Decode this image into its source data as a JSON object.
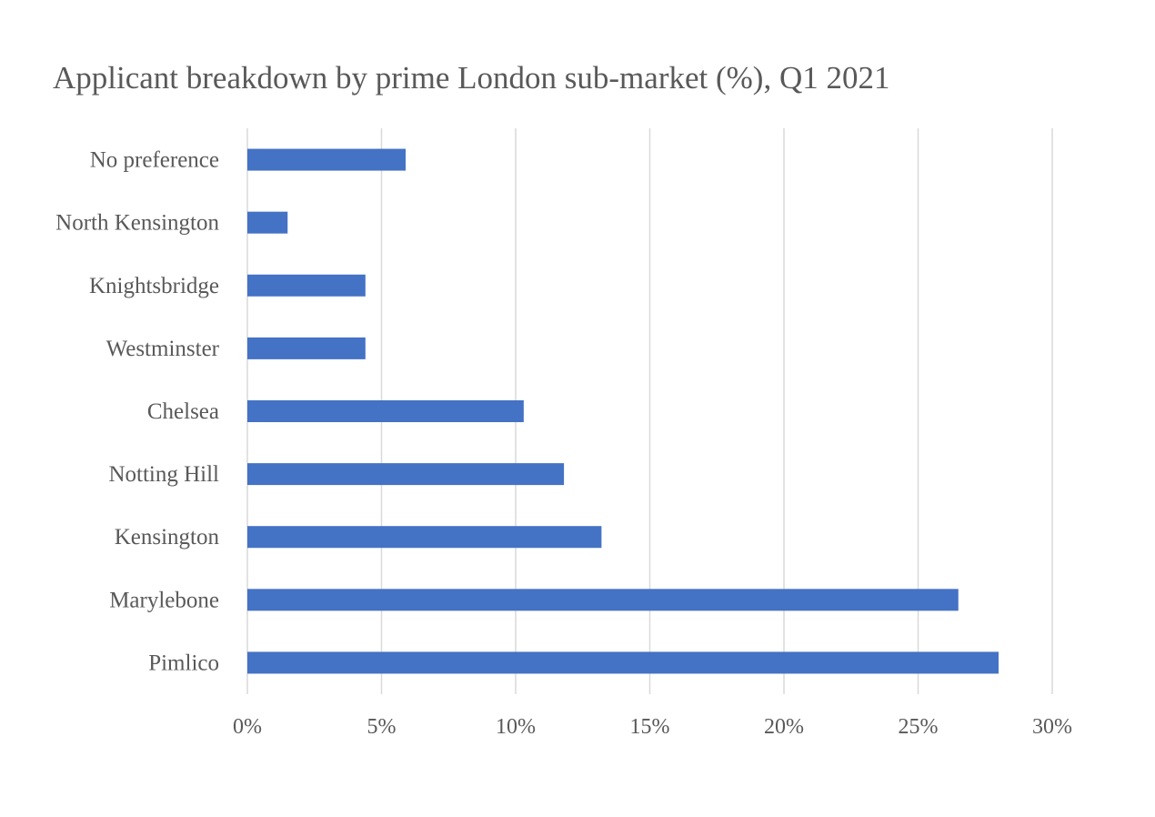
{
  "chart_data": {
    "type": "bar",
    "orientation": "horizontal",
    "title": "Applicant breakdown by prime London sub-market (%), Q1 2021",
    "categories": [
      "No preference",
      "North Kensington",
      "Knightsbridge",
      "Westminster",
      "Chelsea",
      "Notting Hill",
      "Kensington",
      "Marylebone",
      "Pimlico"
    ],
    "values": [
      5.9,
      1.5,
      4.4,
      4.4,
      10.3,
      11.8,
      13.2,
      26.5,
      28.0
    ],
    "xlim": [
      0,
      30
    ],
    "x_ticks": [
      0,
      5,
      10,
      15,
      20,
      25,
      30
    ],
    "x_tick_labels": [
      "0%",
      "5%",
      "10%",
      "15%",
      "20%",
      "25%",
      "30%"
    ],
    "xlabel": "",
    "ylabel": "",
    "grid": "vertical",
    "legend": "none",
    "bar_color": "#4472c4"
  }
}
